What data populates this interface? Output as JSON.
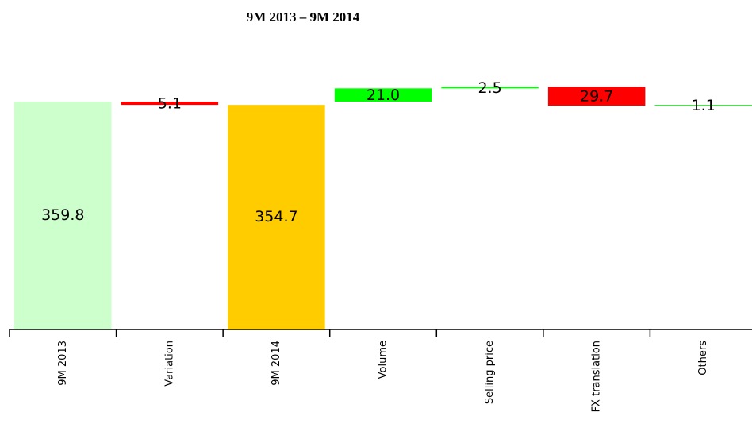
{
  "chart_data": {
    "type": "waterfall",
    "title": "9M 2013 – 9M 2014",
    "categories": [
      "9M 2013",
      "Variation",
      "9M 2014",
      "Volume",
      "Selling price",
      "FX translation",
      "Others"
    ],
    "values": [
      359.8,
      -5.1,
      354.7,
      21.0,
      2.5,
      -29.7,
      1.1
    ],
    "value_labels": [
      "359.8",
      "5.1",
      "354.7",
      "21.0",
      "2.5",
      "29.7",
      "1.1"
    ],
    "measure": [
      "absolute",
      "relative",
      "absolute",
      "relative",
      "relative",
      "relative",
      "relative"
    ],
    "colors": [
      "#ccffcc",
      "#ff0000",
      "#ffcc00",
      "#00ff00",
      "#00ff00",
      "#ff0000",
      "#00ff00"
    ],
    "ylim": [
      0,
      400
    ]
  }
}
